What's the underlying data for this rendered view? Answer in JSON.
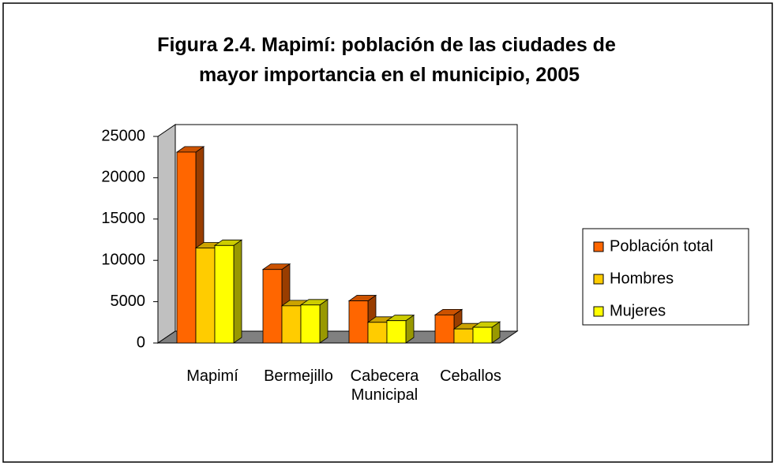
{
  "chart_data": {
    "type": "bar3d",
    "title": "Figura 2.4. Mapimí: población de las ciudades de mayor importancia en el municipio, 2005",
    "categories": [
      "Mapimí",
      "Bermejillo",
      "Cabecera Municipal",
      "Ceballos"
    ],
    "series": [
      {
        "name": "Población total",
        "color": "#ff6600",
        "values": [
          23100,
          8900,
          5100,
          3400
        ]
      },
      {
        "name": "Hombres",
        "color": "#ffcc00",
        "values": [
          11500,
          4500,
          2500,
          1700
        ]
      },
      {
        "name": "Mujeres",
        "color": "#ffff00",
        "values": [
          11800,
          4600,
          2700,
          1900
        ]
      }
    ],
    "ylim": [
      0,
      25000
    ],
    "yticks": [
      0,
      5000,
      10000,
      15000,
      20000,
      25000
    ],
    "legend": "right"
  }
}
